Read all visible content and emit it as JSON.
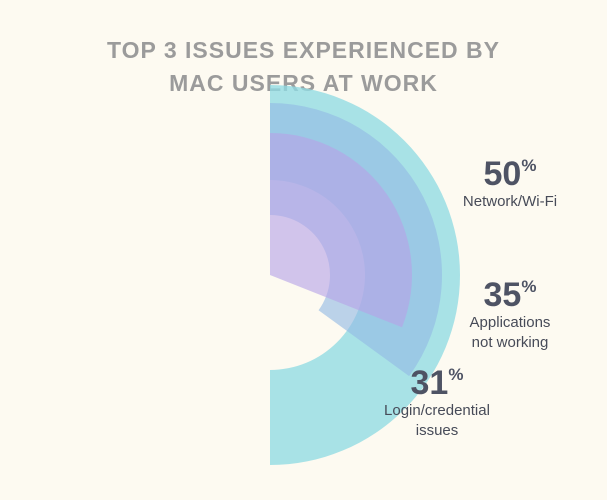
{
  "chart_data": {
    "type": "radial-bar",
    "title_lines": [
      "TOP 3 ISSUES EXPERIENCED BY",
      "MAC USERS AT WORK"
    ],
    "unit": "%",
    "categories": [
      "Network/Wi-Fi",
      "Applications not working",
      "Login/credential issues"
    ],
    "values": [
      50,
      35,
      31
    ],
    "series": [
      {
        "category": "Network/Wi-Fi",
        "label_lines": [
          "Network/Wi-Fi"
        ],
        "value": 50,
        "color": "#8fdbe3"
      },
      {
        "category": "Applications not working",
        "label_lines": [
          "Applications",
          "not working"
        ],
        "value": 35,
        "color": "#93b9e3"
      },
      {
        "category": "Login/credential issues",
        "label_lines": [
          "Login/credential",
          "issues"
        ],
        "value": 31,
        "color": "#b7a3e6"
      }
    ]
  }
}
